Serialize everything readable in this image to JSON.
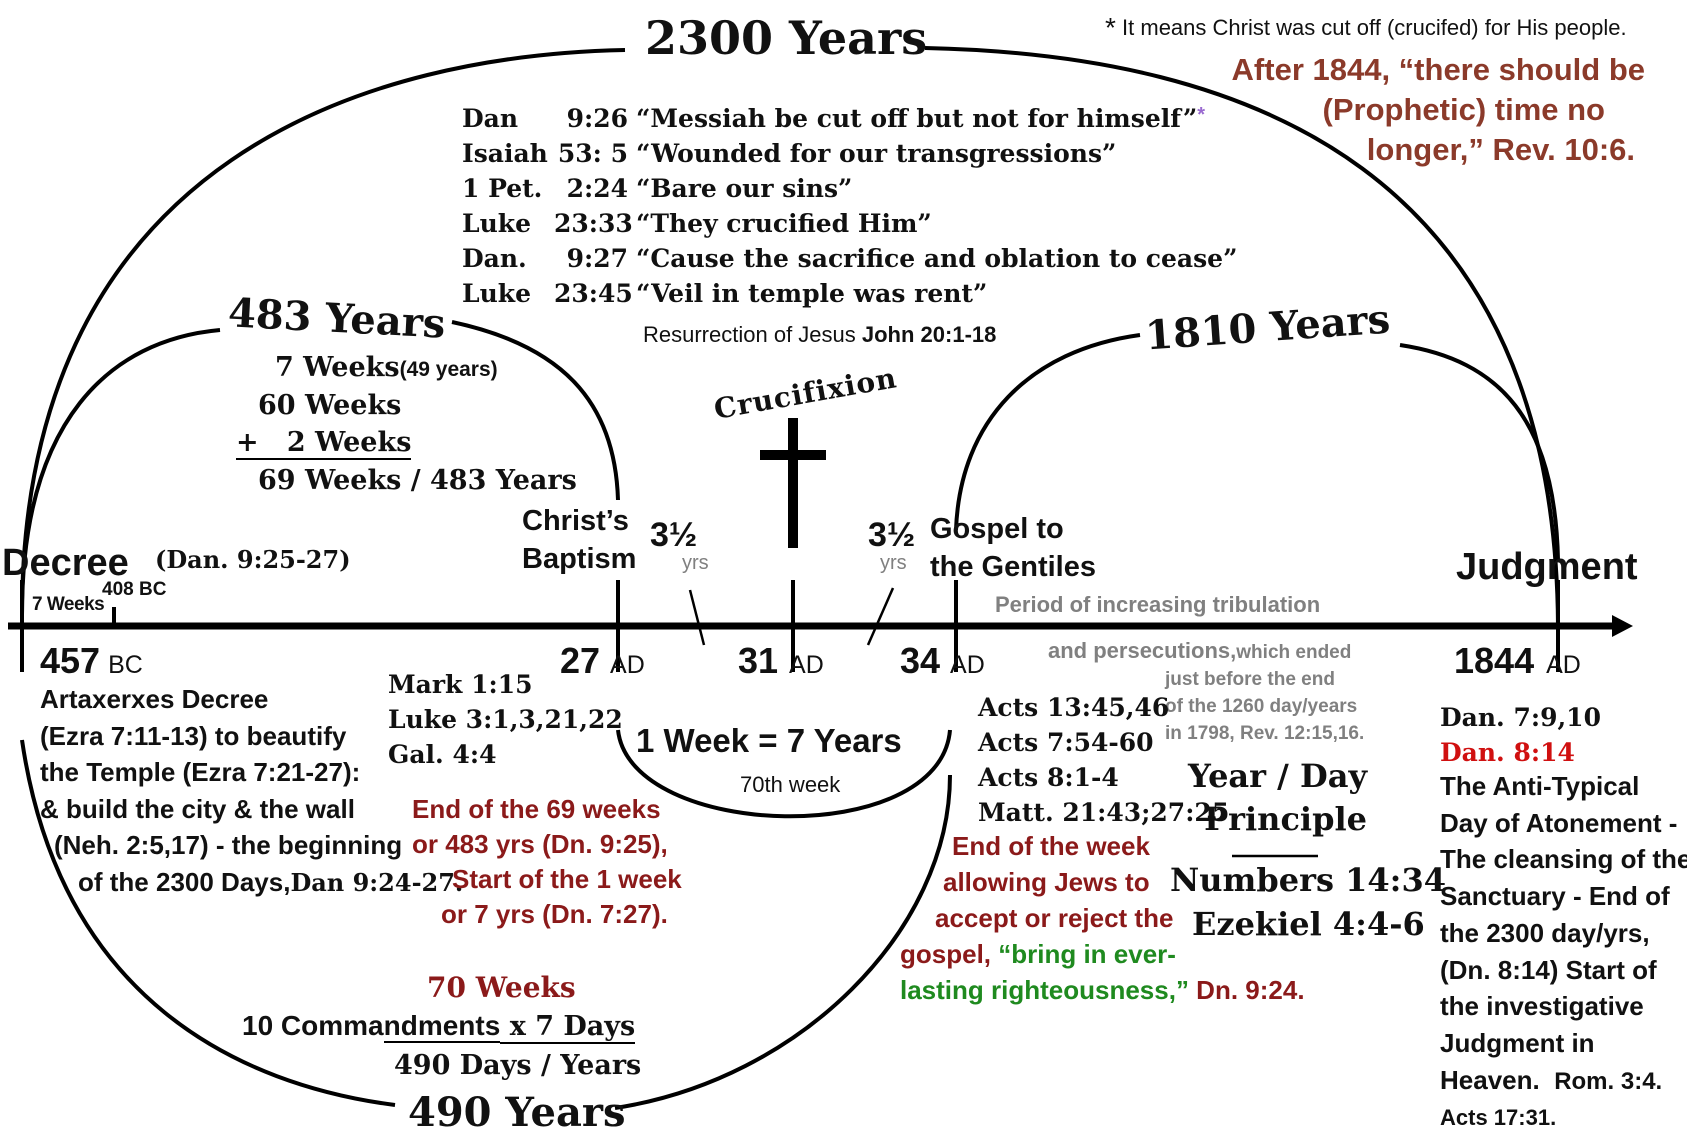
{
  "title": "2300 Years",
  "footnote": {
    "star": "*",
    "text": "It means Christ was cut off (crucifed) for His people."
  },
  "after1844": [
    "After 1844, “there should be",
    "(Prophetic) time no",
    "longer,” Rev. 10:6."
  ],
  "scripture_refs": [
    {
      "book": "Dan",
      "verse": "9:26",
      "quote": "“Messiah be cut off but not for himself”",
      "star": "*"
    },
    {
      "book": "Isaiah",
      "verse": "53: 5",
      "quote": "“Wounded for our transgressions”"
    },
    {
      "book": "1 Pet.",
      "verse": "2:24",
      "quote": "“Bare our sins”"
    },
    {
      "book": "Luke",
      "verse": "23:33",
      "quote": "“They crucified Him”"
    },
    {
      "book": "Dan.",
      "verse": "9:27",
      "quote": "“Cause the sacrifice and oblation to cease”"
    },
    {
      "book": "Luke",
      "verse": "23:45",
      "quote": "“Veil in temple was rent”"
    }
  ],
  "resurrection": {
    "text": "Resurrection of Jesus ",
    "ref": "John 20:1-18"
  },
  "years483": {
    "label": "483 Years",
    "line1": "7 Weeks",
    "line1_note": "(49 years)",
    "line2": "60 Weeks",
    "line3": "+   2 Weeks",
    "line4": "69 Weeks / 483 Years"
  },
  "years1810": "1810 Years",
  "crucifixion": "Crucifixion",
  "christs_baptism": [
    "Christ’s",
    "Baptism"
  ],
  "half_week_left": {
    "num": "3½",
    "unit": "yrs"
  },
  "half_week_right": {
    "num": "3½",
    "unit": "yrs"
  },
  "gospel_gentiles": [
    "Gospel to",
    "the Gentiles"
  ],
  "judgment": "Judgment",
  "decree": {
    "label": "Decree",
    "ref": "(Dan. 9:25-27)"
  },
  "seven_weeks": "7 Weeks",
  "bc408": "408 BC",
  "period_tribulation": "Period of increasing tribulation",
  "persecutions": {
    "main": "and persecutions,",
    "rest": "which ended",
    "lines": [
      "just before the end",
      "of the 1260 day/years",
      "in 1798, Rev. 12:15,16."
    ]
  },
  "dates": {
    "d457": {
      "year": "457",
      "era": "BC"
    },
    "d27": {
      "year": "27",
      "era": "AD"
    },
    "d31": {
      "year": "31",
      "era": "AD"
    },
    "d34": {
      "year": "34",
      "era": "AD"
    },
    "d1844": {
      "year": "1844",
      "era": "AD"
    }
  },
  "artaxerxes": [
    "Artaxerxes Decree",
    "(Ezra 7:11-13) to beautify",
    "the Temple (Ezra 7:21-27):",
    "& build the city & the wall",
    "(Neh. 2:5,17) - the beginning",
    "of the 2300 Days,"
  ],
  "artaxerxes_ref": "Dan 9:24-27.",
  "mark_refs": [
    "Mark 1:15",
    "Luke 3:1,3,21,22",
    "Gal. 4:4"
  ],
  "end69": [
    "End of the 69 weeks",
    "or 483 yrs (Dn. 9:25),",
    "Start of the 1 week",
    "or 7 yrs (Dn. 7:27)."
  ],
  "week_equation": "1 Week = 7 Years",
  "week70": "70th week",
  "acts_refs": [
    "Acts 13:45,46",
    "Acts 7:54-60",
    "Acts 8:1-4",
    "Matt. 21:43;27:25"
  ],
  "end_week": [
    "End of the week",
    "allowing Jews to",
    "accept or reject the"
  ],
  "gospel_line": {
    "start": "gospel,",
    "green1": " “bring in ever-",
    "green2": "lasting righteousness,”",
    "end": " Dn. 9:24."
  },
  "year_day": [
    "Year / Day",
    "Principle"
  ],
  "numbers": "Numbers 14:34",
  "ezekiel": "Ezekiel 4:4-6",
  "dan_refs": {
    "first": "Dan. 7:9,10",
    "second": "Dan. 8:14"
  },
  "atonement": [
    "The Anti-Typical",
    "Day of Atonement -",
    "The cleansing of the",
    "Sanctuary - End of",
    "the 2300 day/yrs,",
    "(Dn. 8:14) Start of",
    "the investigative",
    "Judgment in",
    "Heaven."
  ],
  "rom_ref": "Rom. 3:4.",
  "acts17": "Acts 17:31.",
  "weeks70": "70 Weeks",
  "ten_commandments": {
    "pre": "10 Comma",
    "underlined": "ndments",
    "mid": " x 7 Days"
  },
  "days490": "490 Days / Years",
  "years490": "490 Years"
}
